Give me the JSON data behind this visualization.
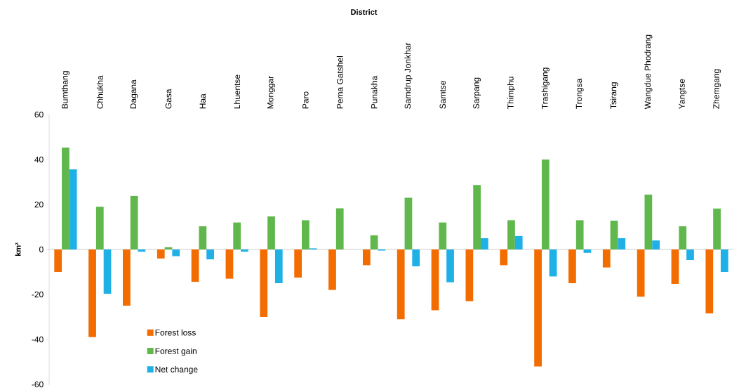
{
  "chart_data": {
    "type": "bar",
    "xlabel": "District",
    "ylabel": "km²",
    "categories": [
      "Bumthang",
      "Chhukha",
      "Dagana",
      "Gasa",
      "Haa",
      "Lhuentse",
      "Monggar",
      "Paro",
      "Pema Gatshel",
      "Punakha",
      "Samdrup Jonkhar",
      "Samtse",
      "Sarpang",
      "Thimphu",
      "Trashigang",
      "Trongsa",
      "Tsirang",
      "Wangdue Phodrang",
      "Yangtse",
      "Zhemgang"
    ],
    "series": [
      {
        "name": "Forest loss",
        "color": "#f36c00",
        "values": [
          -10,
          -39,
          -25,
          -4,
          -14.4,
          -13,
          -30,
          -12.5,
          -18,
          -7,
          -31,
          -27,
          -23,
          -7,
          -52,
          -15,
          -8,
          -21,
          -15.3,
          -28.4
        ]
      },
      {
        "name": "Forest gain",
        "color": "#60b84d",
        "values": [
          45.3,
          19,
          23.8,
          1,
          10.3,
          12,
          14.7,
          13,
          18.3,
          6.3,
          23,
          12,
          28.7,
          13,
          40,
          13,
          12.8,
          24.4,
          10.3,
          18.2
        ]
      },
      {
        "name": "Net change",
        "color": "#1fb1e6",
        "values": [
          35.6,
          -19.7,
          -1,
          -3,
          -4.4,
          -1,
          -15,
          0.5,
          0,
          -0.5,
          -7.5,
          -14.6,
          5,
          6,
          -12,
          -1.5,
          5,
          4,
          -4.7,
          -10
        ]
      }
    ],
    "ylim": [
      -60,
      60
    ],
    "yticks": [
      -60,
      -40,
      -20,
      0,
      20,
      40,
      60
    ],
    "legend": "bottom left"
  }
}
